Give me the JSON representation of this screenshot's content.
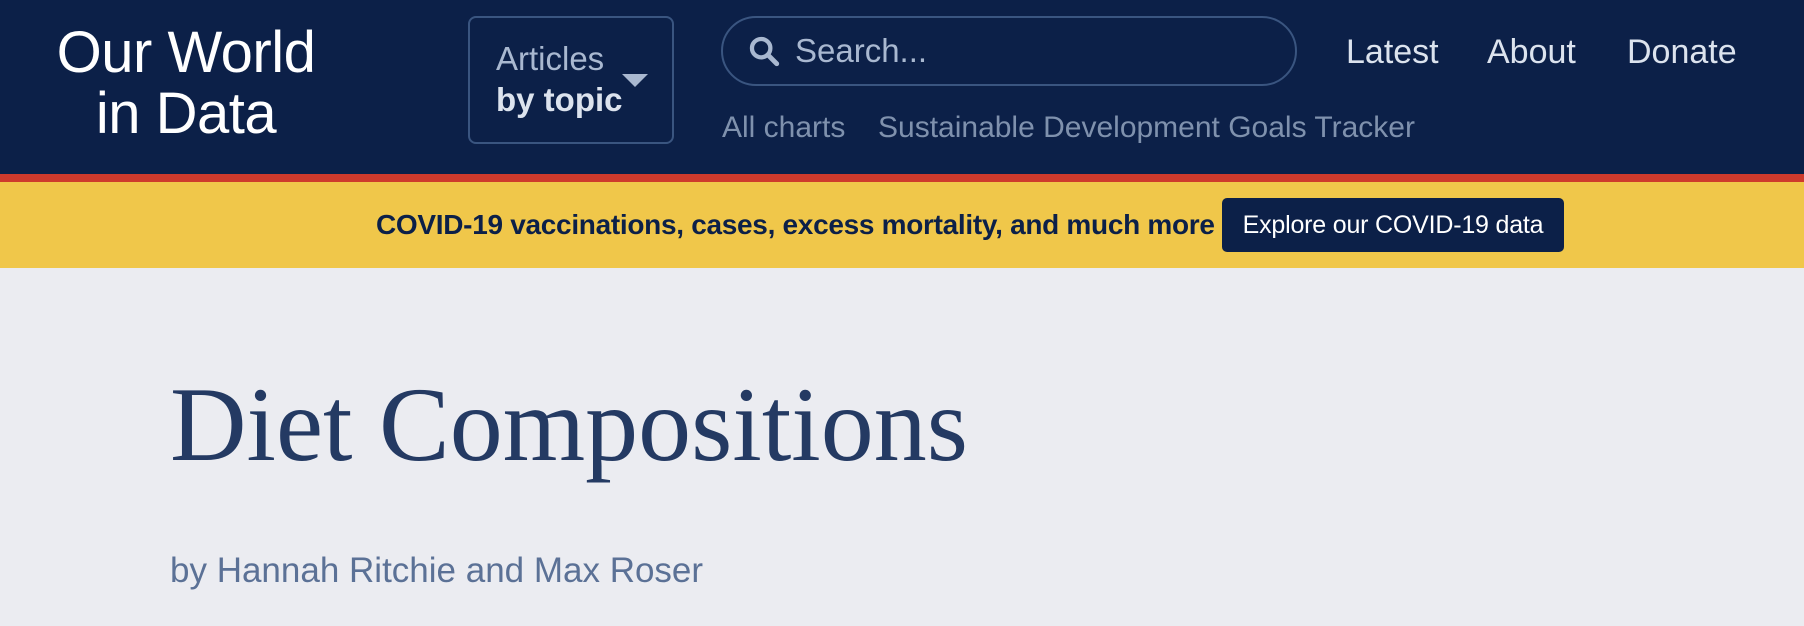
{
  "header": {
    "logo_line1": "Our World",
    "logo_line2": "in Data",
    "articles_line1": "Articles",
    "articles_line2": "by topic",
    "search_placeholder": "Search...",
    "nav": [
      "Latest",
      "About",
      "Donate"
    ],
    "subnav": [
      "All charts",
      "Sustainable Development Goals Tracker"
    ]
  },
  "banner": {
    "text": "COVID-19 vaccinations, cases, excess mortality, and much more",
    "button_label": "Explore our COVID-19 data"
  },
  "article": {
    "title": "Diet Compositions",
    "byline": "by Hannah Ritchie and Max Roser"
  },
  "colors": {
    "header_bg": "#0c2048",
    "accent_stripe": "#ce3a2c",
    "banner_bg": "#f0c74a",
    "page_bg": "#ebecf1",
    "title": "#243a63"
  },
  "icons": {
    "search": "search-icon",
    "articles_dropdown": "chevron-down-icon"
  }
}
